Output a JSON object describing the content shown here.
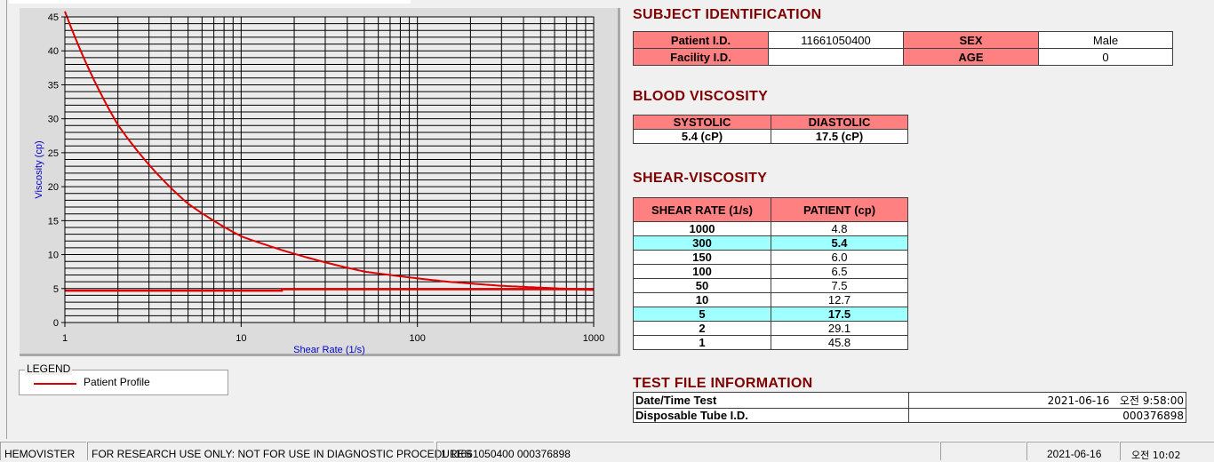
{
  "chart_data": {
    "type": "line",
    "xlabel": "Shear Rate (1/s)",
    "ylabel": "Viscosity (cp)",
    "xscale": "log",
    "xlim": [
      1,
      1000
    ],
    "ylim": [
      0,
      45
    ],
    "xticks": [
      "1",
      "10",
      "100",
      "1000"
    ],
    "yticks": [
      "0",
      "5",
      "10",
      "15",
      "20",
      "25",
      "30",
      "35",
      "40",
      "45"
    ],
    "grid": true,
    "legend_placement": "below-left",
    "series": [
      {
        "name": "Patient Profile",
        "color": "#dd0000",
        "x": [
          1,
          2,
          5,
          10,
          50,
          100,
          150,
          300,
          1000
        ],
        "y": [
          45.8,
          29.1,
          17.5,
          12.7,
          7.5,
          6.5,
          6.0,
          5.4,
          4.8
        ]
      },
      {
        "color": "#dd0000",
        "x": [
          1,
          17,
          17,
          1000
        ],
        "y": [
          4.7,
          4.7,
          4.9,
          4.9
        ]
      }
    ]
  },
  "legend": {
    "title": "LEGEND",
    "entry": "Patient Profile"
  },
  "subject": {
    "title": "SUBJECT IDENTIFICATION",
    "patient_id_label": "Patient I.D.",
    "patient_id": "11661050400",
    "sex_label": "SEX",
    "sex": "Male",
    "facility_label": "Facility I.D.",
    "facility": "",
    "age_label": "AGE",
    "age": "0"
  },
  "blood": {
    "title": "BLOOD VISCOSITY",
    "systolic_label": "SYSTOLIC",
    "diastolic_label": "DIASTOLIC",
    "systolic": "5.4 (cP)",
    "diastolic": "17.5 (cP)"
  },
  "shear": {
    "title": "SHEAR-VISCOSITY",
    "col1": "SHEAR RATE (1/s)",
    "col2": "PATIENT (cp)",
    "rows": [
      {
        "rate": "1000",
        "val": "4.8"
      },
      {
        "rate": "300",
        "val": "5.4",
        "hl": true
      },
      {
        "rate": "150",
        "val": "6.0"
      },
      {
        "rate": "100",
        "val": "6.5"
      },
      {
        "rate": "50",
        "val": "7.5"
      },
      {
        "rate": "10",
        "val": "12.7"
      },
      {
        "rate": "5",
        "val": "17.5",
        "hl": true
      },
      {
        "rate": "2",
        "val": "29.1"
      },
      {
        "rate": "1",
        "val": "45.8"
      }
    ]
  },
  "testfile": {
    "title": "TEST FILE INFORMATION",
    "date_label": "Date/Time Test",
    "date": "2021-06-16   오전 9:58:00",
    "tube_label": "Disposable Tube I.D.",
    "tube": "000376898"
  },
  "status": {
    "app": "HEMOVISTER",
    "notice": "FOR RESEARCH USE ONLY: NOT FOR USE IN DIAGNOSTIC PROCEDURES",
    "record": "1  11661050400  000376898",
    "date": "2021-06-16",
    "time": "오전 10:02"
  }
}
